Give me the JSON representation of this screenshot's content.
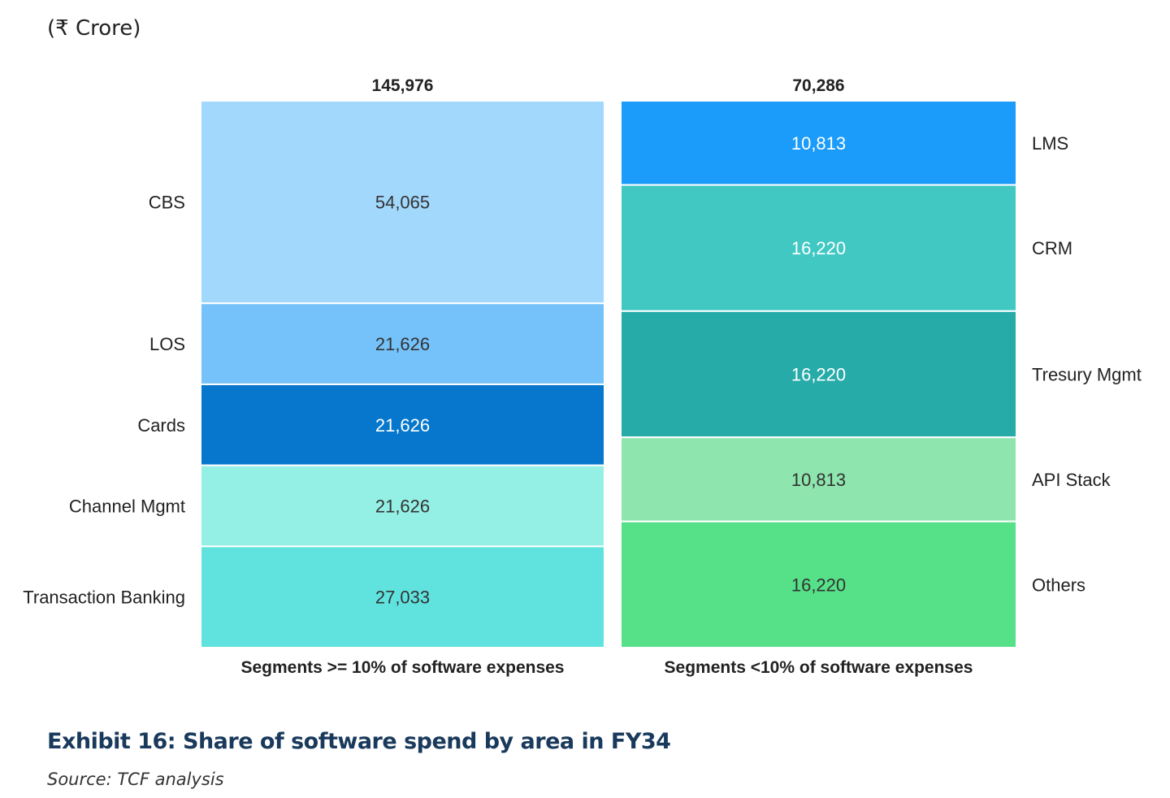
{
  "unit_label": "(₹ Crore)",
  "chart_data": {
    "type": "bar",
    "stacked": true,
    "normalized": true,
    "bars": [
      {
        "category": "Segments >= 10% of software expenses",
        "total": "145,976",
        "segments": [
          {
            "name": "CBS",
            "value": 54065,
            "label": "54,065",
            "color": "#A3D8FD",
            "text_color": "#333333"
          },
          {
            "name": "LOS",
            "value": 21626,
            "label": "21,626",
            "color": "#75C2FA",
            "text_color": "#333333"
          },
          {
            "name": "Cards",
            "value": 21626,
            "label": "21,626",
            "color": "#0677CC",
            "text_color": "#FFFFFF"
          },
          {
            "name": "Channel Mgmt",
            "value": 21626,
            "label": "21,626",
            "color": "#94EFE4",
            "text_color": "#333333"
          },
          {
            "name": "Transaction Banking",
            "value": 27033,
            "label": "27,033",
            "color": "#60E3DF",
            "text_color": "#333333"
          }
        ]
      },
      {
        "category": "Segments <10% of software expenses",
        "total": "70,286",
        "segments": [
          {
            "name": "LMS",
            "value": 10813,
            "label": "10,813",
            "color": "#1B9BFA",
            "text_color": "#FFFFFF"
          },
          {
            "name": "CRM",
            "value": 16220,
            "label": "16,220",
            "color": "#42C8C3",
            "text_color": "#FFFFFF"
          },
          {
            "name": "Tresury Mgmt",
            "value": 16220,
            "label": "16,220",
            "color": "#26ABA9",
            "text_color": "#FFFFFF"
          },
          {
            "name": "API Stack",
            "value": 10813,
            "label": "10,813",
            "color": "#8EE5AD",
            "text_color": "#333333"
          },
          {
            "name": "Others",
            "value": 16220,
            "label": "16,220",
            "color": "#56E088",
            "text_color": "#333333"
          }
        ]
      }
    ]
  },
  "caption": {
    "title": "Exhibit 16: Share of software spend by area in FY34",
    "source": "Source: TCF analysis"
  }
}
